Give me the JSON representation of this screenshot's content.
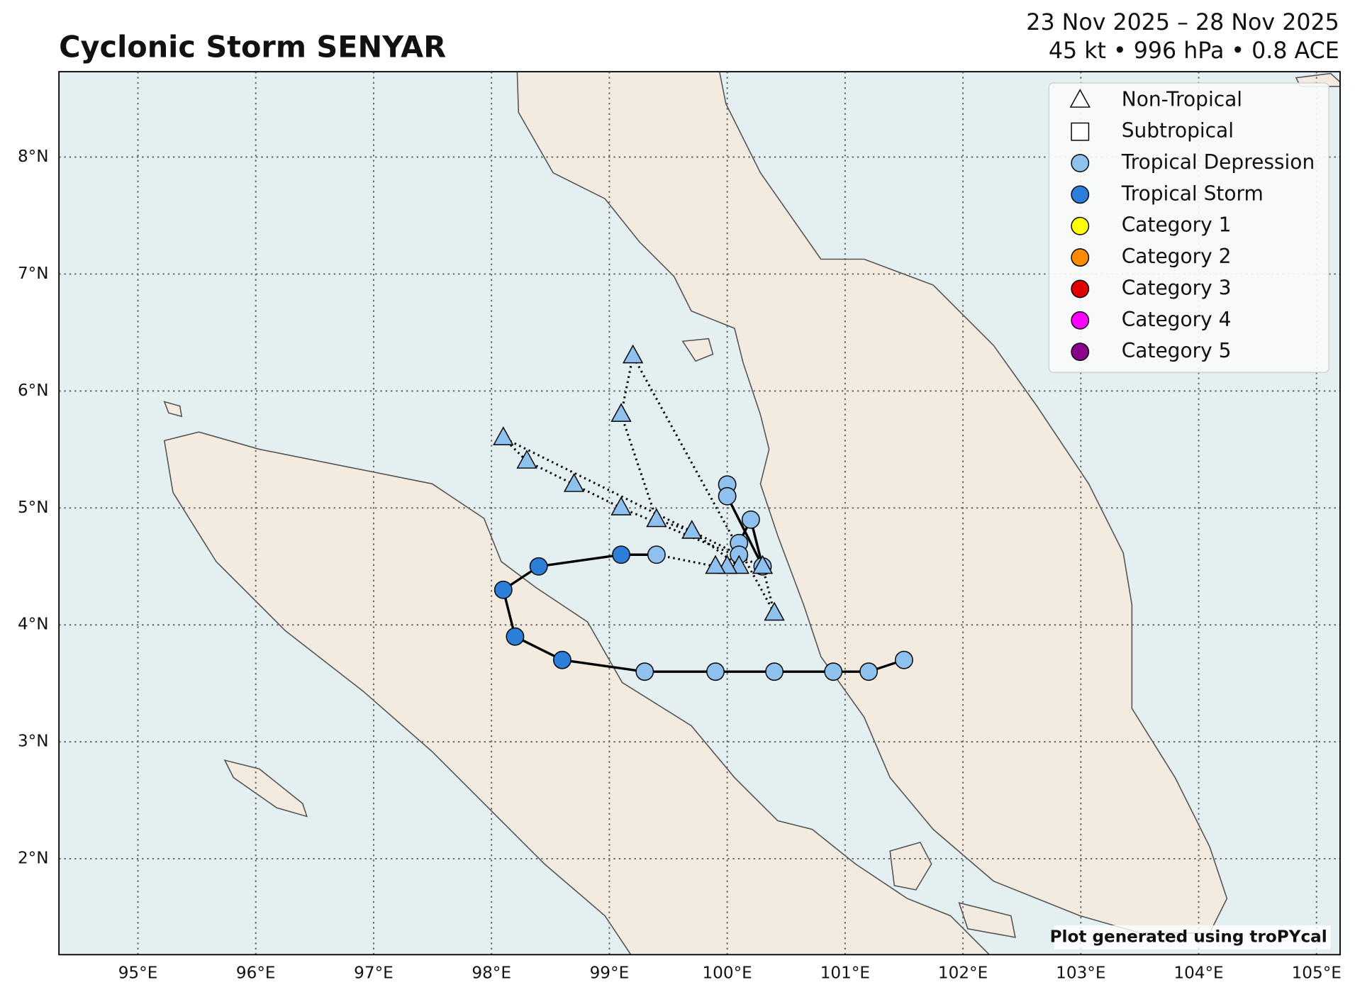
{
  "chart_data": {
    "type": "track-map",
    "title": "Cyclonic Storm SENYAR",
    "subtitle": [
      "23 Nov 2025 – 28 Nov 2025",
      "45 kt • 996 hPa • 0.8 ACE"
    ],
    "credit": "Plot generated using troPYcal",
    "xlim": [
      94.33,
      105.2
    ],
    "ylim": [
      1.18,
      8.73
    ],
    "xticks": [
      {
        "value": 95,
        "label": "95°E"
      },
      {
        "value": 96,
        "label": "96°E"
      },
      {
        "value": 97,
        "label": "97°E"
      },
      {
        "value": 98,
        "label": "98°E"
      },
      {
        "value": 99,
        "label": "99°E"
      },
      {
        "value": 100,
        "label": "100°E"
      },
      {
        "value": 101,
        "label": "101°E"
      },
      {
        "value": 102,
        "label": "102°E"
      },
      {
        "value": 103,
        "label": "103°E"
      },
      {
        "value": 104,
        "label": "104°E"
      },
      {
        "value": 105,
        "label": "105°E"
      }
    ],
    "yticks": [
      {
        "value": 2,
        "label": "2°N"
      },
      {
        "value": 3,
        "label": "3°N"
      },
      {
        "value": 4,
        "label": "4°N"
      },
      {
        "value": 5,
        "label": "5°N"
      },
      {
        "value": 6,
        "label": "6°N"
      },
      {
        "value": 7,
        "label": "7°N"
      },
      {
        "value": 8,
        "label": "8°N"
      }
    ],
    "grid": true,
    "legend": "upper right",
    "legend_entries": [
      {
        "name": "Non-Tropical",
        "marker": "triangle",
        "color": "none"
      },
      {
        "name": "Subtropical",
        "marker": "square",
        "color": "none"
      },
      {
        "name": "Tropical Depression",
        "marker": "circle",
        "color": "#8fc1ef"
      },
      {
        "name": "Tropical Storm",
        "marker": "circle",
        "color": "#2b7fd9"
      },
      {
        "name": "Category 1",
        "marker": "circle",
        "color": "#ffff00"
      },
      {
        "name": "Category 2",
        "marker": "circle",
        "color": "#ff8c00"
      },
      {
        "name": "Category 3",
        "marker": "circle",
        "color": "#e00000"
      },
      {
        "name": "Category 4",
        "marker": "circle",
        "color": "#ff00ff"
      },
      {
        "name": "Category 5",
        "marker": "circle",
        "color": "#8b008b"
      }
    ],
    "track": {
      "lon": [
        100.0,
        100.0,
        100.3,
        100.2,
        100.1,
        100.1,
        98.1,
        98.3,
        98.7,
        99.1,
        100.3,
        100.4,
        99.2,
        99.1,
        99.4,
        99.7,
        100.1,
        100.0,
        99.9,
        99.4,
        99.1,
        98.4,
        98.1,
        98.2,
        98.6,
        99.3,
        99.9,
        100.4,
        100.9,
        101.2,
        101.5
      ],
      "lat": [
        5.2,
        5.1,
        4.5,
        4.9,
        4.7,
        4.6,
        5.6,
        5.4,
        5.2,
        5.0,
        4.5,
        4.1,
        6.3,
        5.8,
        4.9,
        4.8,
        4.5,
        4.5,
        4.5,
        4.6,
        4.6,
        4.5,
        4.3,
        3.9,
        3.7,
        3.6,
        3.6,
        3.6,
        3.6,
        3.6,
        3.7
      ],
      "marker": [
        "circle",
        "circle",
        "circle",
        "circle",
        "circle",
        "circle",
        "triangle",
        "triangle",
        "triangle",
        "triangle",
        "triangle",
        "triangle",
        "triangle",
        "triangle",
        "triangle",
        "triangle",
        "triangle",
        "triangle",
        "triangle",
        "circle",
        "circle",
        "circle",
        "circle",
        "circle",
        "circle",
        "circle",
        "circle",
        "circle",
        "circle",
        "circle",
        "circle"
      ],
      "color": [
        "#8fc1ef",
        "#8fc1ef",
        "#8fc1ef",
        "#8fc1ef",
        "#8fc1ef",
        "#8fc1ef",
        "#8fc1ef",
        "#8fc1ef",
        "#8fc1ef",
        "#8fc1ef",
        "#8fc1ef",
        "#8fc1ef",
        "#8fc1ef",
        "#8fc1ef",
        "#8fc1ef",
        "#8fc1ef",
        "#8fc1ef",
        "#8fc1ef",
        "#8fc1ef",
        "#8fc1ef",
        "#2b7fd9",
        "#2b7fd9",
        "#2b7fd9",
        "#2b7fd9",
        "#2b7fd9",
        "#8fc1ef",
        "#8fc1ef",
        "#8fc1ef",
        "#8fc1ef",
        "#8fc1ef",
        "#8fc1ef"
      ]
    }
  }
}
